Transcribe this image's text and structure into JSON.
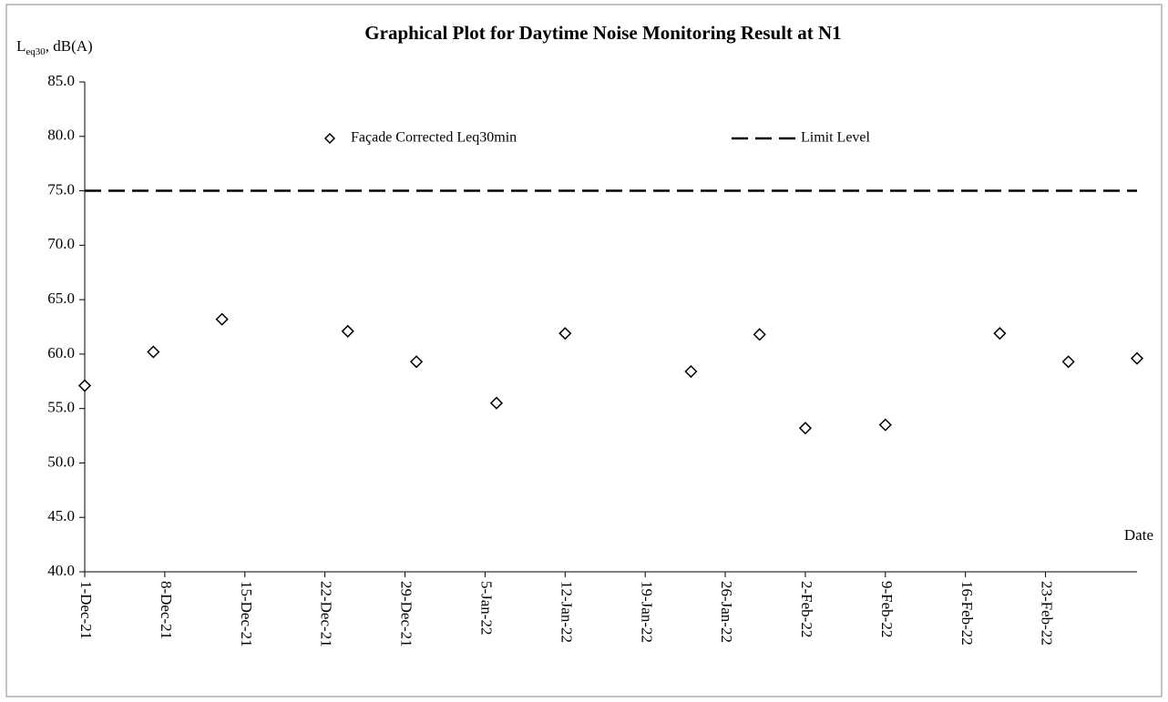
{
  "chart_data": {
    "type": "scatter",
    "title": "Graphical Plot for Daytime Noise Monitoring Result at N1",
    "ylabel_parts": [
      "L",
      "eq30",
      ", dB(A)"
    ],
    "xlabel": "Date",
    "x": [
      "2021-12-01",
      "2021-12-07",
      "2021-12-13",
      "2021-12-24",
      "2021-12-30",
      "2022-01-06",
      "2022-01-12",
      "2022-01-23",
      "2022-01-29",
      "2022-02-02",
      "2022-02-09",
      "2022-02-19",
      "2022-02-25",
      "2022-03-03"
    ],
    "series": [
      {
        "name": "Façade Corrected Leq30min",
        "color": "#000000",
        "marker": "diamond",
        "values": [
          57.1,
          60.2,
          63.2,
          62.1,
          59.3,
          55.5,
          61.9,
          58.4,
          61.8,
          53.2,
          53.5,
          61.9,
          59.3,
          59.6
        ]
      }
    ],
    "reference_lines": [
      {
        "name": "Limit Level",
        "value": 75,
        "color": "#000000",
        "style": "dashed"
      }
    ],
    "xlim": [
      "2021-12-01",
      "2022-03-03"
    ],
    "xticks": [
      {
        "value": "2021-12-01",
        "label": "1-Dec-21"
      },
      {
        "value": "2021-12-08",
        "label": "8-Dec-21"
      },
      {
        "value": "2021-12-15",
        "label": "15-Dec-21"
      },
      {
        "value": "2021-12-22",
        "label": "22-Dec-21"
      },
      {
        "value": "2021-12-29",
        "label": "29-Dec-21"
      },
      {
        "value": "2022-01-05",
        "label": "5-Jan-22"
      },
      {
        "value": "2022-01-12",
        "label": "12-Jan-22"
      },
      {
        "value": "2022-01-19",
        "label": "19-Jan-22"
      },
      {
        "value": "2022-01-26",
        "label": "26-Jan-22"
      },
      {
        "value": "2022-02-02",
        "label": "2-Feb-22"
      },
      {
        "value": "2022-02-09",
        "label": "9-Feb-22"
      },
      {
        "value": "2022-02-16",
        "label": "16-Feb-22"
      },
      {
        "value": "2022-02-23",
        "label": "23-Feb-22"
      }
    ],
    "ylim": [
      40,
      85
    ],
    "yticks": [
      {
        "value": 40,
        "label": "40.0"
      },
      {
        "value": 45,
        "label": "45.0"
      },
      {
        "value": 50,
        "label": "50.0"
      },
      {
        "value": 55,
        "label": "55.0"
      },
      {
        "value": 60,
        "label": "60.0"
      },
      {
        "value": 65,
        "label": "65.0"
      },
      {
        "value": 70,
        "label": "70.0"
      },
      {
        "value": 75,
        "label": "75.0"
      },
      {
        "value": 80,
        "label": "80.0"
      },
      {
        "value": 85,
        "label": "85.0"
      }
    ],
    "grid": false,
    "legend": "top"
  }
}
